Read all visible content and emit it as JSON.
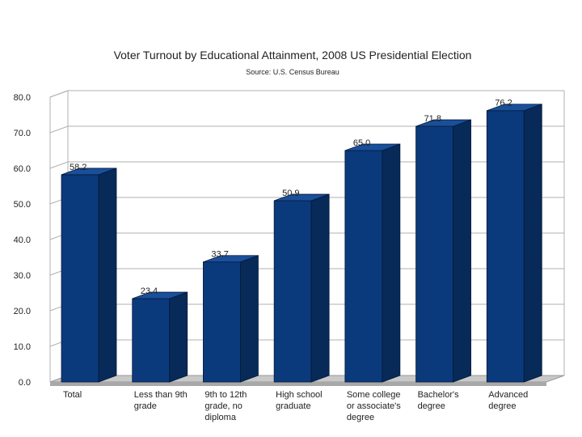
{
  "chart_data": {
    "type": "bar",
    "title": "Voter Turnout by Educational Attainment, 2008 US Presidential Election",
    "subtitle": "Source: U.S. Census Bureau",
    "xlabel": "",
    "ylabel": "",
    "ylim": [
      0,
      80
    ],
    "yticks": [
      "0.0",
      "10.0",
      "20.0",
      "30.0",
      "40.0",
      "50.0",
      "60.0",
      "70.0",
      "80.0"
    ],
    "grid": true,
    "legend": "none",
    "categories": [
      [
        "Total"
      ],
      [
        "Less than 9th",
        "grade"
      ],
      [
        "9th to 12th",
        "grade, no",
        "diploma"
      ],
      [
        "High school",
        "graduate"
      ],
      [
        "Some college",
        "or associate's",
        "degree"
      ],
      [
        "Bachelor's",
        "degree"
      ],
      [
        "Advanced",
        "degree"
      ]
    ],
    "values": [
      58.2,
      23.4,
      33.7,
      50.9,
      65.0,
      71.8,
      76.2
    ],
    "data_labels": [
      "58.2",
      "23.4",
      "33.7",
      "50.9",
      "65.0",
      "71.8",
      "76.2"
    ],
    "colors": {
      "bar_front": "#0b3a7c",
      "bar_side": "#072a58",
      "bar_top": "#1a4f9a",
      "floor": "#c8c8c8",
      "grid": "#b0b0b0"
    }
  }
}
